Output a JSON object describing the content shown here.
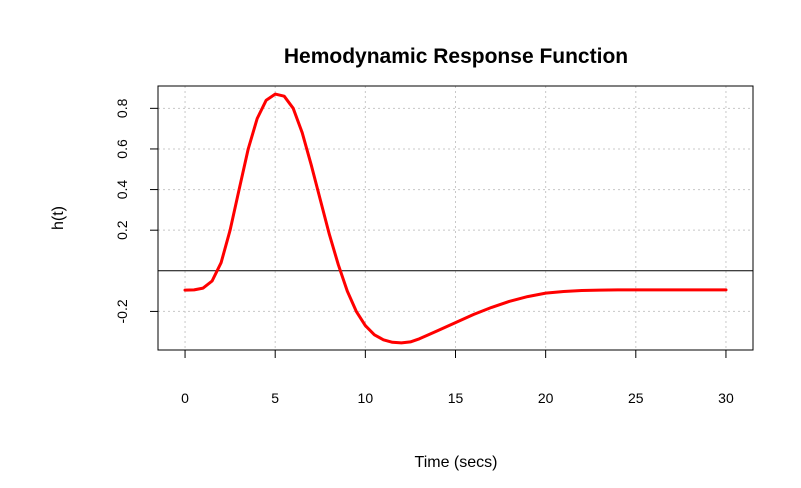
{
  "chart_data": {
    "type": "line",
    "title": "Hemodynamic Response Function",
    "xlabel": "Time (secs)",
    "ylabel": "h(t)",
    "xlim": [
      -1.5,
      31.5
    ],
    "ylim": [
      -0.39,
      0.91
    ],
    "x_ticks": [
      0,
      5,
      10,
      15,
      20,
      25,
      30
    ],
    "y_ticks": [
      -0.2,
      0.2,
      0.4,
      0.6,
      0.8
    ],
    "y_tick_labels": [
      "-0.2",
      "0.2",
      "0.4",
      "0.6",
      "0.8"
    ],
    "grid": true,
    "hline": 0,
    "series": [
      {
        "color": "#ff0000",
        "x": [
          0,
          0.5,
          1,
          1.5,
          2,
          2.5,
          3,
          3.5,
          4,
          4.5,
          5,
          5.5,
          6,
          6.5,
          7,
          7.5,
          8,
          8.5,
          9,
          9.5,
          10,
          10.5,
          11,
          11.5,
          12,
          12.5,
          13,
          13.5,
          14,
          15,
          16,
          17,
          18,
          19,
          20,
          21,
          22,
          23,
          24,
          25,
          26,
          27,
          28,
          29,
          30
        ],
        "y": [
          -0.095,
          -0.094,
          -0.085,
          -0.05,
          0.04,
          0.2,
          0.4,
          0.6,
          0.75,
          0.84,
          0.87,
          0.86,
          0.8,
          0.68,
          0.52,
          0.35,
          0.18,
          0.03,
          -0.1,
          -0.2,
          -0.27,
          -0.315,
          -0.34,
          -0.352,
          -0.355,
          -0.35,
          -0.335,
          -0.315,
          -0.295,
          -0.255,
          -0.215,
          -0.18,
          -0.15,
          -0.127,
          -0.11,
          -0.102,
          -0.097,
          -0.095,
          -0.094,
          -0.094,
          -0.094,
          -0.094,
          -0.094,
          -0.094,
          -0.094
        ]
      }
    ]
  }
}
